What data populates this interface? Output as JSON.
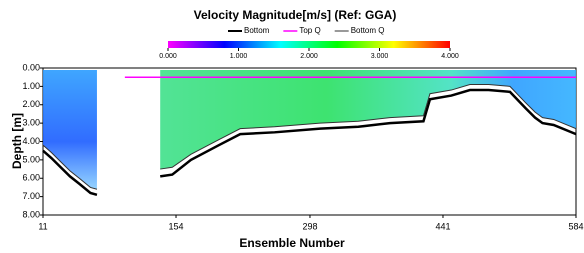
{
  "chart_data": {
    "type": "depth-profile",
    "title": "Velocity Magnitude[m/s] (Ref: GGA)",
    "x_label": "Ensemble Number",
    "y_label": "Depth [m]",
    "x": [
      11,
      20,
      30,
      40,
      50,
      62,
      69,
      99,
      137,
      150,
      170,
      200,
      223,
      260,
      309,
      350,
      384,
      420,
      427,
      450,
      470,
      490,
      513,
      530,
      540,
      548,
      560,
      584
    ],
    "series": [
      {
        "name": "Bottom",
        "color": "#000000",
        "width": 2.5,
        "values": [
          4.5,
          4.9,
          5.4,
          5.9,
          6.3,
          6.8,
          6.9,
          null,
          5.9,
          5.8,
          5.0,
          4.2,
          3.6,
          3.5,
          3.3,
          3.2,
          3.0,
          2.9,
          1.7,
          1.5,
          1.2,
          1.2,
          1.3,
          2.2,
          2.7,
          3.0,
          3.1,
          3.6
        ]
      },
      {
        "name": "Top Q",
        "color": "#ff00ff",
        "width": 1.5,
        "values": [
          null,
          null,
          null,
          null,
          null,
          null,
          null,
          0.5,
          0.5,
          0.5,
          0.5,
          0.5,
          0.5,
          0.5,
          0.5,
          0.5,
          0.5,
          0.5,
          0.5,
          0.5,
          0.5,
          0.5,
          0.5,
          0.5,
          0.5,
          0.5,
          0.5,
          0.5
        ]
      },
      {
        "name": "Bottom Q",
        "color": "#333333",
        "width": 1,
        "values": [
          4.2,
          4.6,
          5.1,
          5.6,
          6.0,
          6.5,
          6.6,
          null,
          5.5,
          5.4,
          4.7,
          3.9,
          3.3,
          3.2,
          3.0,
          2.9,
          2.7,
          2.6,
          1.4,
          1.2,
          0.9,
          0.9,
          1.0,
          1.9,
          2.4,
          2.7,
          2.8,
          3.3
        ]
      }
    ],
    "xlim": [
      11,
      584
    ],
    "xticks": [
      11,
      154,
      298,
      441,
      584
    ],
    "ylim": [
      0,
      8
    ],
    "y_inverted": true,
    "yticks": [
      {
        "value": 0,
        "label": "0.00"
      },
      {
        "value": 1,
        "label": "1.00"
      },
      {
        "value": 2,
        "label": "2.00"
      },
      {
        "value": 3,
        "label": "3.00"
      },
      {
        "value": 4,
        "label": "4.00"
      },
      {
        "value": 5,
        "label": "5.00"
      },
      {
        "value": 6,
        "label": "6.00"
      },
      {
        "value": 7,
        "label": "7.00"
      },
      {
        "value": 8,
        "label": "8.00"
      }
    ],
    "colorbar": {
      "lim": [
        0,
        4
      ],
      "colors": [
        "#ff00ff",
        "#0000ff",
        "#00ffff",
        "#00ff00",
        "#ffff00",
        "#ff0000"
      ],
      "ticks": [
        {
          "value": 0,
          "label": "0.000"
        },
        {
          "value": 1,
          "label": "1.000"
        },
        {
          "value": 2,
          "label": "2.000"
        },
        {
          "value": 3,
          "label": "3.000"
        },
        {
          "value": 4,
          "label": "4.000"
        }
      ]
    },
    "grid": false
  }
}
